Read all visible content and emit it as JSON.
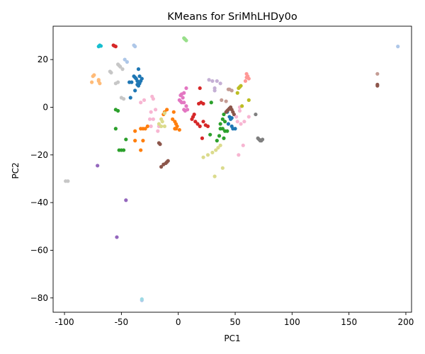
{
  "chart_data": {
    "type": "scatter",
    "title": "KMeans for SriMhLHDy0o",
    "xlabel": "PC1",
    "ylabel": "PC2",
    "xlim": [
      -110,
      205
    ],
    "ylim": [
      -86,
      34
    ],
    "xticks": [
      -100,
      -50,
      0,
      50,
      100,
      150,
      200
    ],
    "yticks": [
      -80,
      -60,
      -40,
      -20,
      0,
      20
    ],
    "grid": false,
    "legend": "none",
    "series": [
      {
        "color": "#1f77b4",
        "points": [
          [
            -39,
            13
          ],
          [
            -38,
            12.5
          ],
          [
            -37,
            12
          ],
          [
            -36,
            11
          ],
          [
            -35,
            16
          ],
          [
            -35,
            9
          ],
          [
            -34,
            13
          ],
          [
            -34,
            10
          ],
          [
            -33,
            11
          ],
          [
            -32,
            12
          ],
          [
            -41,
            10.5
          ],
          [
            -43,
            10.5
          ],
          [
            -38,
            7
          ],
          [
            -42,
            4
          ],
          [
            -36,
            9.5
          ],
          [
            45,
            -4
          ],
          [
            46,
            -5
          ],
          [
            47,
            -8
          ],
          [
            44,
            -7
          ],
          [
            48,
            -9
          ],
          [
            50,
            -9
          ],
          [
            43,
            -2
          ],
          [
            47,
            -4.5
          ]
        ]
      },
      {
        "color": "#aec7e8",
        "points": [
          [
            -47,
            20
          ],
          [
            -45,
            19
          ],
          [
            -39,
            26
          ],
          [
            -38,
            25.5
          ],
          [
            -32,
            -81
          ],
          [
            193,
            25.5
          ]
        ]
      },
      {
        "color": "#ff7f0e",
        "points": [
          [
            -38,
            -10
          ],
          [
            -38,
            -14
          ],
          [
            -33,
            -9
          ],
          [
            -31,
            -9
          ],
          [
            -31,
            -14
          ],
          [
            -33,
            -18
          ],
          [
            -29,
            -9
          ],
          [
            -27,
            -8
          ],
          [
            -13,
            -3
          ],
          [
            -12,
            -2
          ],
          [
            -10,
            -1
          ],
          [
            -5,
            -5
          ],
          [
            -3,
            -6
          ],
          [
            -3,
            -9
          ],
          [
            -2,
            -9
          ],
          [
            -2,
            -7
          ],
          [
            -1,
            -8
          ],
          [
            -4,
            -2
          ],
          [
            1,
            -9.5
          ]
        ]
      },
      {
        "color": "#ffbb78",
        "points": [
          [
            -75,
            13
          ],
          [
            -74,
            13.5
          ],
          [
            -76,
            10.5
          ],
          [
            -70,
            11
          ],
          [
            -69,
            10
          ],
          [
            -70,
            11.5
          ]
        ]
      },
      {
        "color": "#2ca02c",
        "points": [
          [
            -55,
            -1
          ],
          [
            -53,
            -1.5
          ],
          [
            -55,
            -9
          ],
          [
            -52,
            -18
          ],
          [
            -50,
            -18
          ],
          [
            -48,
            -18
          ],
          [
            -46,
            -13.5
          ],
          [
            29,
            2
          ],
          [
            40,
            -3
          ],
          [
            39,
            -5
          ],
          [
            41,
            -6
          ],
          [
            37,
            -7
          ],
          [
            37,
            -9
          ],
          [
            39,
            -9
          ],
          [
            41,
            -10
          ],
          [
            43,
            -10
          ],
          [
            40,
            -13
          ],
          [
            36,
            -12
          ],
          [
            34,
            -14
          ],
          [
            28,
            -11.5
          ]
        ]
      },
      {
        "color": "#98df8a",
        "points": [
          [
            5,
            29
          ],
          [
            6,
            28.5
          ],
          [
            7,
            28
          ],
          [
            5.5,
            28.7
          ]
        ]
      },
      {
        "color": "#d62728",
        "points": [
          [
            -57,
            26
          ],
          [
            -55,
            25.5
          ],
          [
            -56,
            25.7
          ],
          [
            18,
            1.5
          ],
          [
            20,
            2
          ],
          [
            22,
            1.5
          ],
          [
            14,
            -3
          ],
          [
            13,
            -4
          ],
          [
            12,
            -5
          ],
          [
            15,
            -6
          ],
          [
            17,
            -7
          ],
          [
            19,
            -8
          ],
          [
            22,
            -6
          ],
          [
            24,
            -7.5
          ],
          [
            26,
            -8
          ],
          [
            21,
            -13
          ],
          [
            19,
            8
          ]
        ]
      },
      {
        "color": "#ff9896",
        "points": [
          [
            60,
            14
          ],
          [
            61,
            13
          ],
          [
            62,
            12
          ],
          [
            59,
            11
          ],
          [
            60,
            12.5
          ]
        ]
      },
      {
        "color": "#9467bd",
        "points": [
          [
            -71,
            -24.5
          ],
          [
            -46,
            -39
          ],
          [
            -54,
            -54.5
          ]
        ]
      },
      {
        "color": "#c5b0d5",
        "points": [
          [
            27,
            11.5
          ],
          [
            30,
            11
          ],
          [
            34,
            11
          ],
          [
            37,
            10
          ],
          [
            32,
            8
          ],
          [
            32,
            7
          ]
        ]
      },
      {
        "color": "#8c564b",
        "points": [
          [
            -17,
            -15
          ],
          [
            -16,
            -15.5
          ],
          [
            -15,
            -25
          ],
          [
            -13,
            -24
          ],
          [
            -11,
            -23.5
          ],
          [
            -10,
            -23
          ],
          [
            -9,
            -22.5
          ],
          [
            42,
            -2
          ],
          [
            43,
            -1.5
          ],
          [
            44,
            -1
          ],
          [
            45,
            -0.5
          ],
          [
            46,
            0
          ],
          [
            47,
            -1
          ],
          [
            48,
            -2
          ],
          [
            49,
            -3
          ],
          [
            175,
            9
          ],
          [
            175,
            9.5
          ]
        ]
      },
      {
        "color": "#c49c94",
        "points": [
          [
            38,
            3
          ],
          [
            42,
            2.5
          ],
          [
            44,
            7.5
          ],
          [
            47,
            7
          ],
          [
            45,
            7.5
          ],
          [
            175,
            14
          ]
        ]
      },
      {
        "color": "#e377c2",
        "points": [
          [
            2,
            5
          ],
          [
            3,
            5.5
          ],
          [
            4,
            4
          ],
          [
            5,
            6
          ],
          [
            1,
            3
          ],
          [
            2,
            2.5
          ],
          [
            3,
            2
          ],
          [
            5,
            -1
          ],
          [
            6,
            -1.5
          ],
          [
            7,
            0.5
          ],
          [
            8,
            -1
          ],
          [
            7,
            8
          ],
          [
            5,
            2
          ]
        ]
      },
      {
        "color": "#f7b6d2",
        "points": [
          [
            -33,
            2
          ],
          [
            -30,
            3
          ],
          [
            -23,
            4.5
          ],
          [
            -22,
            3.5
          ],
          [
            -24,
            -2
          ],
          [
            -20,
            -1
          ],
          [
            -25,
            -5
          ],
          [
            -22,
            -5
          ],
          [
            -24,
            -8
          ],
          [
            -18,
            -10
          ],
          [
            -17,
            -8
          ],
          [
            54,
            0
          ],
          [
            51,
            -4
          ],
          [
            52,
            -6
          ],
          [
            55,
            -7
          ],
          [
            58,
            -6
          ],
          [
            57,
            -16
          ],
          [
            53,
            -20
          ],
          [
            62,
            -4
          ],
          [
            54,
            -1.5
          ]
        ]
      },
      {
        "color": "#7f7f7f",
        "points": [
          [
            70,
            -13
          ],
          [
            71,
            -13.5
          ],
          [
            72,
            -14
          ],
          [
            73,
            -14
          ],
          [
            74,
            -13.5
          ],
          [
            68,
            -3
          ]
        ]
      },
      {
        "color": "#c7c7c7",
        "points": [
          [
            -99,
            -31
          ],
          [
            -97,
            -31
          ],
          [
            -60,
            15
          ],
          [
            -59,
            14.5
          ],
          [
            -53,
            18
          ],
          [
            -52,
            17.5
          ],
          [
            -51,
            17
          ],
          [
            -49,
            16
          ],
          [
            -53,
            10.5
          ],
          [
            -55,
            10
          ],
          [
            -50,
            4
          ],
          [
            -48,
            3.5
          ]
        ]
      },
      {
        "color": "#bcbd22",
        "points": [
          [
            52,
            6
          ],
          [
            53,
            8
          ],
          [
            54,
            8.5
          ],
          [
            55,
            9
          ],
          [
            62,
            3
          ],
          [
            56,
            0.5
          ]
        ]
      },
      {
        "color": "#dbdb8d",
        "points": [
          [
            -12,
            -2.5
          ],
          [
            -15,
            -5
          ],
          [
            -17,
            -7
          ],
          [
            -15,
            -8
          ],
          [
            -12,
            -8
          ],
          [
            -14,
            -6
          ],
          [
            22,
            -21
          ],
          [
            26,
            -20
          ],
          [
            30,
            -19
          ],
          [
            33,
            -18
          ],
          [
            35,
            -17
          ],
          [
            37,
            -16
          ],
          [
            32,
            -29
          ],
          [
            39,
            -25.5
          ]
        ]
      },
      {
        "color": "#17becf",
        "points": [
          [
            -70,
            25.5
          ],
          [
            -69,
            26
          ],
          [
            -68,
            25.7
          ]
        ]
      },
      {
        "color": "#9edae5",
        "points": [
          [
            -32,
            -80.5
          ]
        ]
      }
    ]
  }
}
